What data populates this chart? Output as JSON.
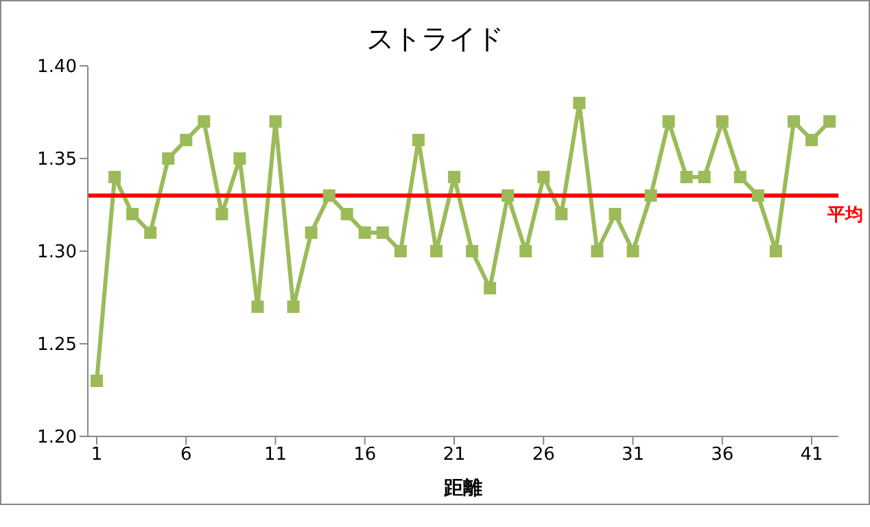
{
  "chart_data": {
    "type": "line",
    "title": "ストライド",
    "xlabel": "距離",
    "x": [
      1,
      2,
      3,
      4,
      5,
      6,
      7,
      8,
      9,
      10,
      11,
      12,
      13,
      14,
      15,
      16,
      17,
      18,
      19,
      20,
      21,
      22,
      23,
      24,
      25,
      26,
      27,
      28,
      29,
      30,
      31,
      32,
      33,
      34,
      35,
      36,
      37,
      38,
      39,
      40,
      41,
      42
    ],
    "xlim": [
      0.5,
      42.5
    ],
    "xticks": [
      1,
      6,
      11,
      16,
      21,
      26,
      31,
      36,
      41
    ],
    "series": [
      {
        "color": "#9bbb59",
        "values": [
          1.23,
          1.34,
          1.32,
          1.31,
          1.35,
          1.36,
          1.37,
          1.32,
          1.35,
          1.27,
          1.37,
          1.27,
          1.31,
          1.33,
          1.32,
          1.31,
          1.31,
          1.3,
          1.36,
          1.3,
          1.34,
          1.3,
          1.28,
          1.33,
          1.3,
          1.34,
          1.32,
          1.38,
          1.3,
          1.32,
          1.3,
          1.33,
          1.37,
          1.34,
          1.34,
          1.37,
          1.34,
          1.33,
          1.3,
          1.37,
          1.36,
          1.37
        ]
      }
    ],
    "ylim": [
      1.2,
      1.4
    ],
    "yticks": [
      {
        "value": 1.2,
        "label": "1.20"
      },
      1.25,
      {
        "value": 1.3,
        "label": "1.30"
      },
      1.35,
      {
        "value": 1.4,
        "label": "1.40"
      }
    ],
    "ref_lines": [
      {
        "axis": "y",
        "value": 1.33,
        "label": "平均",
        "color": "#ff0000"
      }
    ],
    "marker": "square",
    "grid": false
  }
}
